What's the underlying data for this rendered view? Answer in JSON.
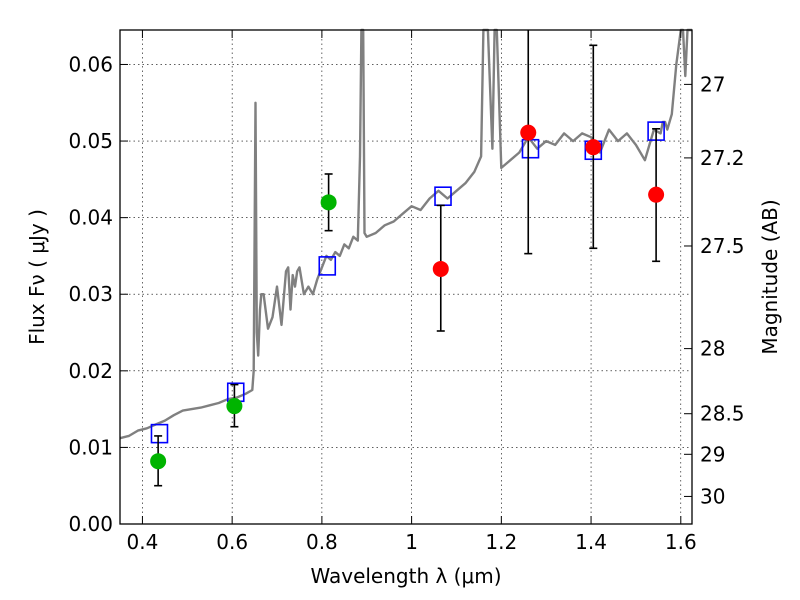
{
  "chart_data": {
    "type": "scatter",
    "xlabel": "Wavelength  λ (μm)",
    "ylabel": "Flux  Fν ( μJy )",
    "ylabel_right": "Magnitude (AB)",
    "xlim": [
      0.35,
      1.625
    ],
    "ylim": [
      0.0,
      0.0645
    ],
    "grid": true,
    "x_ticks": [
      0.4,
      0.6,
      0.8,
      1.0,
      1.2,
      1.4,
      1.6
    ],
    "x_tick_labels": [
      "0.4",
      "0.6",
      "0.8",
      "1",
      "1.2",
      "1.4",
      "1.6"
    ],
    "y_ticks": [
      0.0,
      0.01,
      0.02,
      0.03,
      0.04,
      0.05,
      0.06
    ],
    "y_tick_labels": [
      "0.00",
      "0.01",
      "0.02",
      "0.03",
      "0.04",
      "0.05",
      "0.06"
    ],
    "right_axis_ticks": [
      {
        "label": "27",
        "flux": 0.0574
      },
      {
        "label": "27.2",
        "flux": 0.0478
      },
      {
        "label": "27.5",
        "flux": 0.0363
      },
      {
        "label": "28",
        "flux": 0.0229
      },
      {
        "label": "28.5",
        "flux": 0.0144
      },
      {
        "label": "29",
        "flux": 0.0091
      },
      {
        "label": "30",
        "flux": 0.0036
      }
    ],
    "colors": {
      "sed": "#808080",
      "optical": "#00b400",
      "infrared": "#ff0000",
      "model_box": "#0000ff",
      "errorbar": "#000000"
    },
    "series": [
      {
        "kind": "sed_line",
        "x": [
          0.35,
          0.37,
          0.39,
          0.41,
          0.43,
          0.45,
          0.47,
          0.49,
          0.51,
          0.53,
          0.55,
          0.57,
          0.59,
          0.61,
          0.63,
          0.645,
          0.648,
          0.652,
          0.655,
          0.658,
          0.662,
          0.665,
          0.67,
          0.68,
          0.69,
          0.7,
          0.71,
          0.72,
          0.725,
          0.73,
          0.735,
          0.74,
          0.745,
          0.75,
          0.76,
          0.77,
          0.78,
          0.79,
          0.8,
          0.81,
          0.82,
          0.83,
          0.84,
          0.85,
          0.86,
          0.87,
          0.88,
          0.885,
          0.888,
          0.892,
          0.895,
          0.9,
          0.92,
          0.94,
          0.96,
          0.98,
          1.0,
          1.02,
          1.04,
          1.06,
          1.08,
          1.1,
          1.12,
          1.14,
          1.155,
          1.16,
          1.165,
          1.17,
          1.18,
          1.185,
          1.19,
          1.2,
          1.22,
          1.24,
          1.26,
          1.28,
          1.3,
          1.32,
          1.34,
          1.36,
          1.38,
          1.4,
          1.42,
          1.44,
          1.46,
          1.48,
          1.5,
          1.52,
          1.54,
          1.555,
          1.56,
          1.565,
          1.57,
          1.58,
          1.59,
          1.6,
          1.605,
          1.61,
          1.615,
          1.62,
          1.625
        ],
        "y": [
          0.0112,
          0.0115,
          0.0122,
          0.0125,
          0.013,
          0.0135,
          0.0142,
          0.0148,
          0.015,
          0.0152,
          0.0155,
          0.0158,
          0.0163,
          0.0165,
          0.017,
          0.0175,
          0.02,
          0.055,
          0.025,
          0.022,
          0.028,
          0.03,
          0.03,
          0.0255,
          0.027,
          0.031,
          0.026,
          0.033,
          0.0335,
          0.028,
          0.0325,
          0.031,
          0.033,
          0.0335,
          0.03,
          0.031,
          0.03,
          0.032,
          0.0335,
          0.035,
          0.0345,
          0.0355,
          0.035,
          0.0365,
          0.036,
          0.0375,
          0.037,
          0.048,
          0.0645,
          0.0645,
          0.038,
          0.0375,
          0.038,
          0.039,
          0.0395,
          0.0405,
          0.0415,
          0.041,
          0.0425,
          0.0435,
          0.0425,
          0.0435,
          0.0445,
          0.046,
          0.048,
          0.0645,
          0.0645,
          0.0645,
          0.049,
          0.0645,
          0.0645,
          0.0465,
          0.0475,
          0.0485,
          0.0505,
          0.049,
          0.05,
          0.0495,
          0.051,
          0.05,
          0.051,
          0.0505,
          0.0485,
          0.0515,
          0.05,
          0.051,
          0.0495,
          0.0475,
          0.0515,
          0.051,
          0.0525,
          0.0525,
          0.0515,
          0.0535,
          0.06,
          0.0645,
          0.0645,
          0.0585,
          0.0645,
          0.0645,
          0.0645
        ]
      },
      {
        "kind": "model_boxes",
        "x": [
          0.438,
          0.608,
          0.812,
          1.07,
          1.265,
          1.405,
          1.545
        ],
        "y": [
          0.0118,
          0.0172,
          0.0337,
          0.0428,
          0.049,
          0.0488,
          0.0513
        ]
      },
      {
        "kind": "optical_points",
        "x": [
          0.435,
          0.605,
          0.815
        ],
        "y": [
          0.0082,
          0.0154,
          0.042
        ],
        "err_low": [
          0.0032,
          0.0027,
          0.0037
        ],
        "err_high": [
          0.0033,
          0.0028,
          0.0037
        ]
      },
      {
        "kind": "infrared_points",
        "x": [
          1.065,
          1.26,
          1.405,
          1.545
        ],
        "y": [
          0.0333,
          0.0511,
          0.0492,
          0.043
        ],
        "err_low": [
          0.0081,
          0.0158,
          0.0132,
          0.0087
        ],
        "err_high": [
          0.0083,
          0.0289,
          0.0133,
          0.0086
        ]
      }
    ]
  }
}
